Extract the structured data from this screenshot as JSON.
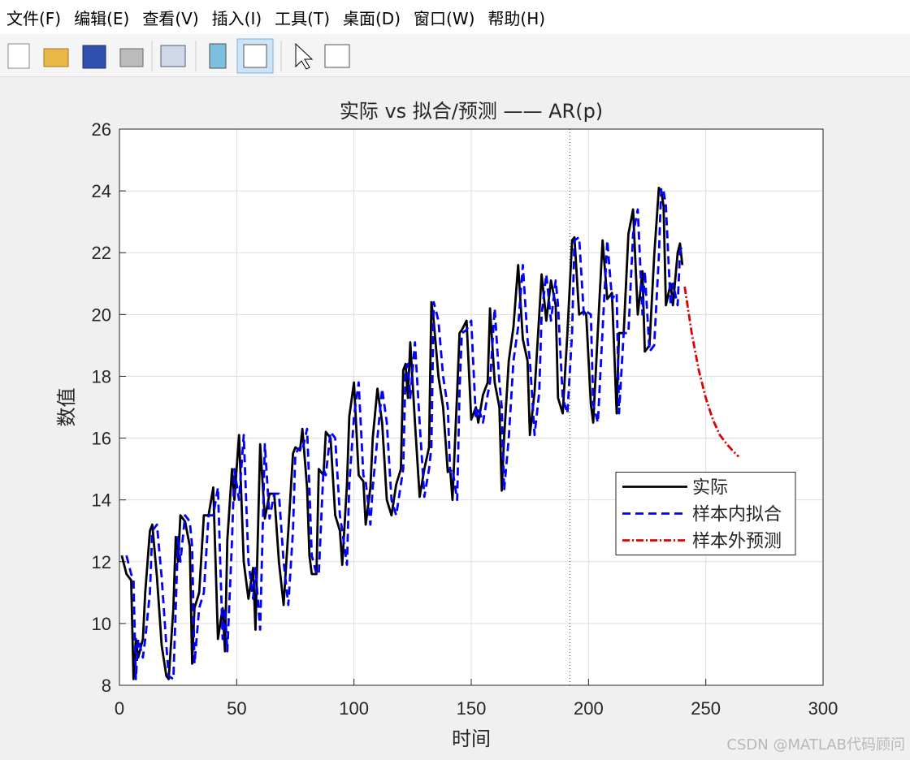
{
  "menu": [
    "文件(F)",
    "编辑(E)",
    "查看(V)",
    "插入(I)",
    "工具(T)",
    "桌面(D)",
    "窗口(W)",
    "帮助(H)"
  ],
  "watermark": "CSDN @MATLAB代码顾问",
  "chart_data": {
    "type": "line",
    "title": "实际 vs 拟合/预测 —— AR(p)",
    "x_label": "时间",
    "y_label": "数值",
    "xlim": [
      0,
      300
    ],
    "xticks": [
      0,
      50,
      100,
      150,
      200,
      250,
      300
    ],
    "ylim": [
      8,
      26
    ],
    "yticks": [
      8,
      10,
      12,
      14,
      16,
      18,
      20,
      22,
      24,
      26
    ],
    "grid": true,
    "legend_location": "east",
    "split_x": 192,
    "x": [
      1,
      3,
      5,
      6,
      7,
      8,
      10,
      11,
      13,
      14,
      16,
      18,
      20,
      21,
      23,
      24,
      25,
      26,
      28,
      30,
      31,
      32,
      34,
      36,
      38,
      40,
      42,
      44,
      45,
      46,
      48,
      49,
      51,
      53,
      55,
      57,
      58,
      60,
      62,
      64,
      66,
      68,
      70,
      72,
      74,
      75,
      77,
      78,
      80,
      81,
      82,
      84,
      85,
      87,
      88,
      90,
      92,
      94,
      95,
      97,
      98,
      100,
      102,
      104,
      105,
      107,
      108,
      110,
      112,
      114,
      116,
      118,
      120,
      121,
      122,
      123,
      124,
      126,
      128,
      130,
      132,
      133,
      134,
      136,
      138,
      140,
      141,
      142,
      144,
      145,
      146,
      148,
      150,
      152,
      153,
      155,
      157,
      158,
      160,
      162,
      163,
      164,
      166,
      168,
      170,
      172,
      174,
      175,
      177,
      179,
      180,
      182,
      184,
      186,
      187,
      189,
      191,
      193,
      194,
      196,
      198,
      199,
      201,
      202,
      204,
      206,
      208,
      210,
      212,
      213,
      215,
      217,
      219,
      221,
      223,
      224,
      226,
      228,
      230,
      231,
      232,
      233,
      235,
      236,
      238,
      239,
      240
    ],
    "series": [
      {
        "name": "实际",
        "color": "#000000",
        "style": "solid",
        "values": [
          12.2,
          11.6,
          11.4,
          8.2,
          9.5,
          8.9,
          9.5,
          11,
          13,
          13.2,
          11.5,
          9.3,
          8.3,
          8.2,
          10.5,
          12.8,
          12,
          13.5,
          13.3,
          12.5,
          8.7,
          10.5,
          11,
          13.5,
          13.5,
          14.4,
          9.5,
          10.5,
          9.1,
          12.7,
          15,
          14,
          16.1,
          12,
          10.8,
          11.8,
          9.8,
          15.8,
          13.4,
          14.2,
          14.2,
          12,
          10.6,
          13,
          15.5,
          15.7,
          15.6,
          16.3,
          14.4,
          12.2,
          11.6,
          11.6,
          15,
          14.8,
          16.2,
          16,
          13.5,
          13,
          11.9,
          14.5,
          16.7,
          17.8,
          14.8,
          14.6,
          13.2,
          14.4,
          16,
          17.6,
          16.5,
          14,
          13.5,
          14.5,
          15,
          18.2,
          18.4,
          17.3,
          19.1,
          16.5,
          14.1,
          15,
          15.7,
          20.4,
          19.8,
          18,
          17,
          14.9,
          15,
          14,
          17.5,
          19.4,
          19.5,
          19.8,
          16.6,
          17,
          16.5,
          17.4,
          17.8,
          20.2,
          17.8,
          17,
          14.3,
          16,
          18.5,
          19.6,
          21.6,
          19.2,
          18.5,
          16.1,
          17.5,
          20,
          21.3,
          19.8,
          21.1,
          20.3,
          17.3,
          16.8,
          19.4,
          22.4,
          22.5,
          20,
          20.1,
          20,
          17.1,
          16.5,
          19.5,
          22.4,
          20.5,
          20.7,
          16.8,
          19.4,
          19.4,
          22.6,
          23.4,
          20,
          21.4,
          18.8,
          19,
          21.9,
          24.1,
          24,
          23.5,
          20.3,
          21,
          20.3,
          22,
          22.3,
          21.6
        ]
      },
      {
        "name": "样本内拟合",
        "color": "#0000ff",
        "style": "dashed",
        "values": [
          null,
          12.2,
          11.6,
          11.4,
          8.2,
          9.5,
          8.9,
          9.5,
          11,
          13,
          13.2,
          11.5,
          9.3,
          8.3,
          8.2,
          10.5,
          12.8,
          12,
          13.5,
          13.3,
          12.5,
          8.7,
          10.5,
          11,
          13.5,
          13.5,
          14.4,
          9.5,
          10.5,
          9.1,
          12.7,
          15,
          14,
          16.1,
          12,
          10.8,
          11.8,
          9.8,
          15.8,
          13.4,
          14.2,
          14.2,
          12,
          10.6,
          13,
          15.5,
          15.7,
          15.6,
          16.3,
          14.4,
          12.2,
          11.6,
          11.6,
          15,
          14.8,
          16.2,
          16,
          13.5,
          13,
          11.9,
          14.5,
          16.7,
          17.8,
          14.8,
          14.6,
          13.2,
          14.4,
          16,
          17.6,
          16.5,
          14,
          13.5,
          14.5,
          15,
          18.2,
          18.4,
          17.3,
          19.1,
          16.5,
          14.1,
          15,
          15.7,
          20.4,
          19.8,
          18,
          17,
          14.9,
          15,
          14,
          17.5,
          19.4,
          19.5,
          19.8,
          16.6,
          17,
          16.5,
          17.4,
          17.8,
          20.2,
          17.8,
          17,
          14.3,
          16,
          18.5,
          19.6,
          21.6,
          19.2,
          18.5,
          16.1,
          17.5,
          20,
          21.3,
          19.8,
          21.1,
          20.3,
          17.3,
          16.8,
          19.4,
          22.4,
          22.5,
          20,
          20.1,
          20,
          17.1,
          16.5,
          19.5,
          22.4,
          20.5,
          20.7,
          16.8,
          19.4,
          19.4,
          22.6,
          23.4,
          20,
          21.4,
          18.8,
          19,
          21.9,
          24.1,
          24,
          23.5,
          20.3,
          21,
          20.3,
          22,
          22.3
        ]
      },
      {
        "name": "样本外预测",
        "color": "#e00000",
        "style": "dashdot",
        "x": [
          241,
          244,
          247,
          250,
          253,
          256,
          259,
          262,
          264
        ],
        "values": [
          20.9,
          19.4,
          18.2,
          17.3,
          16.6,
          16.1,
          15.8,
          15.55,
          15.4
        ]
      }
    ]
  }
}
